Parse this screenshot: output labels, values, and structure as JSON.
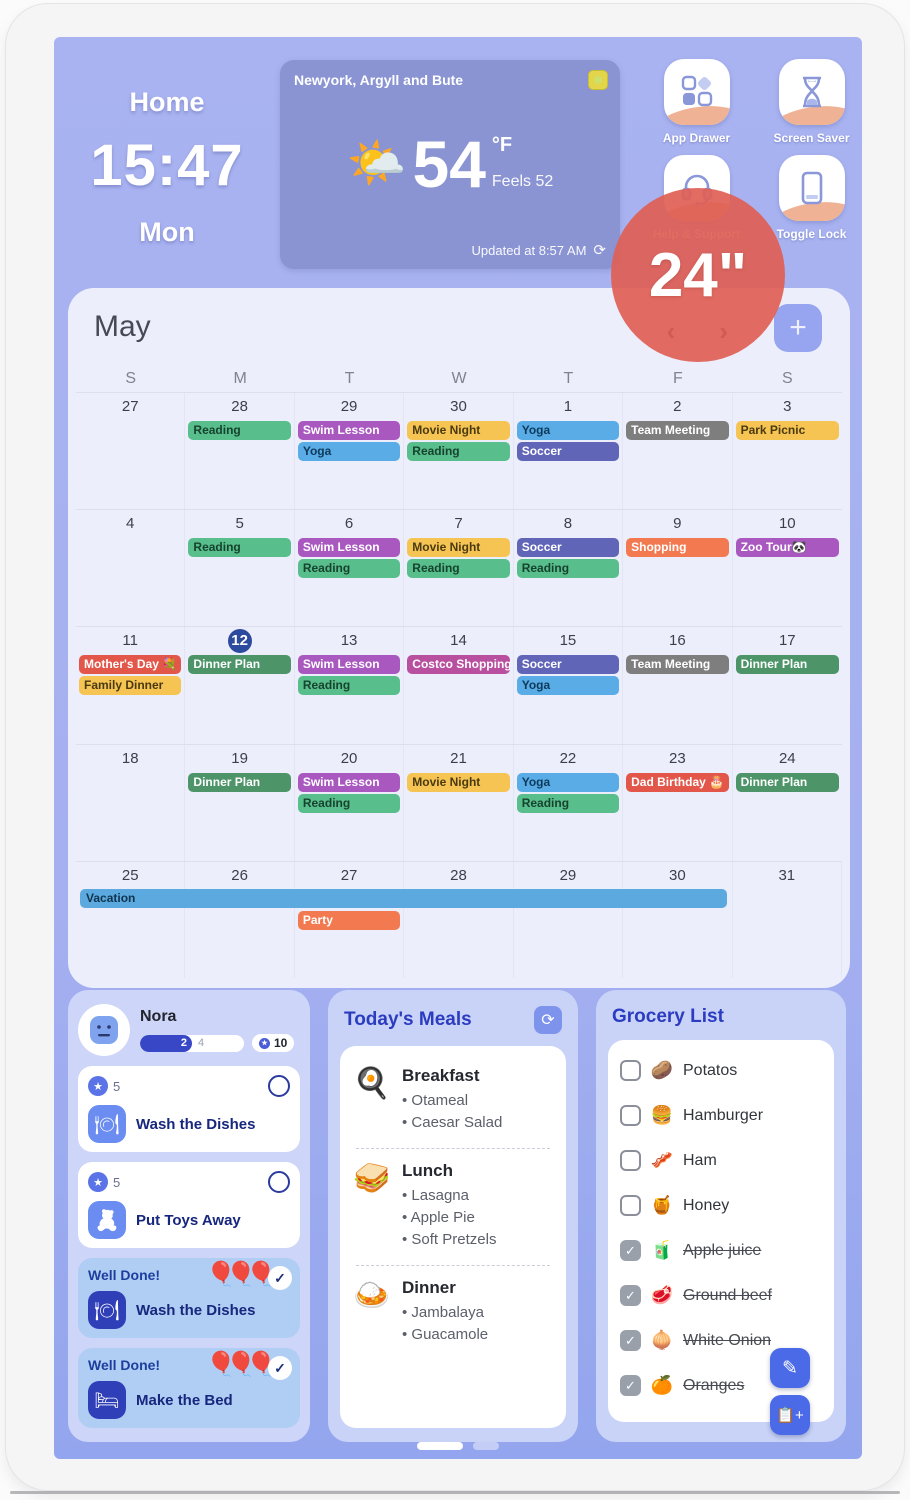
{
  "badge": {
    "text": "24\""
  },
  "clock": {
    "home_label": "Home",
    "time": "15:47",
    "day": "Mon"
  },
  "weather": {
    "location": "Newyork, Argyll and Bute",
    "temp": "54",
    "unit": "°F",
    "feels": "Feels 52",
    "updated": "Updated at 8:57 AM",
    "icon": "sun-behind-cloud"
  },
  "shortcuts": [
    {
      "label": "App Drawer",
      "icon": "app-drawer-icon"
    },
    {
      "label": "Screen Saver",
      "icon": "hourglass-icon"
    },
    {
      "label": "Help & Support",
      "icon": "headset-icon"
    },
    {
      "label": "Toggle Lock",
      "icon": "tablet-lock-icon"
    }
  ],
  "calendar": {
    "month": "May",
    "prev_arrow": "‹",
    "next_arrow": "›",
    "add_label": "+",
    "dow": [
      "S",
      "M",
      "T",
      "W",
      "T",
      "F",
      "S"
    ],
    "today": 12,
    "palette": {
      "green": {
        "bg": "#57BE8C",
        "fg": "#17432E"
      },
      "dgreen": {
        "bg": "#4D9569",
        "fg": "#FFFFFF"
      },
      "purple": {
        "bg": "#A958BF",
        "fg": "#FFFFFF"
      },
      "magenta": {
        "bg": "#B8509F",
        "fg": "#FFFFFF"
      },
      "yellow": {
        "bg": "#F6C453",
        "fg": "#4A3A10"
      },
      "blue": {
        "bg": "#59ACE5",
        "fg": "#0E3A5C"
      },
      "indigo": {
        "bg": "#6065B8",
        "fg": "#FFFFFF"
      },
      "gray": {
        "bg": "#7E7E7E",
        "fg": "#FFFFFF"
      },
      "red": {
        "bg": "#E2574A",
        "fg": "#FFFFFF"
      },
      "orange": {
        "bg": "#F37A50",
        "fg": "#FFFFFF"
      },
      "sky": {
        "bg": "#5BA9DE",
        "fg": "#10344F"
      }
    },
    "weeks": [
      [
        {
          "d": 27,
          "ev": []
        },
        {
          "d": 28,
          "ev": [
            {
              "t": "Reading",
              "c": "green"
            }
          ]
        },
        {
          "d": 29,
          "ev": [
            {
              "t": "Swim Lesson",
              "c": "purple"
            },
            {
              "t": "Yoga",
              "c": "blue"
            }
          ]
        },
        {
          "d": 30,
          "ev": [
            {
              "t": "Movie Night",
              "c": "yellow"
            },
            {
              "t": "Reading",
              "c": "green"
            }
          ]
        },
        {
          "d": 1,
          "ev": [
            {
              "t": "Yoga",
              "c": "blue"
            },
            {
              "t": "Soccer",
              "c": "indigo"
            }
          ]
        },
        {
          "d": 2,
          "ev": [
            {
              "t": "Team Meeting",
              "c": "gray"
            }
          ]
        },
        {
          "d": 3,
          "ev": [
            {
              "t": "Park Picnic",
              "c": "yellow"
            }
          ]
        }
      ],
      [
        {
          "d": 4,
          "ev": []
        },
        {
          "d": 5,
          "ev": [
            {
              "t": "Reading",
              "c": "green"
            }
          ]
        },
        {
          "d": 6,
          "ev": [
            {
              "t": "Swim Lesson",
              "c": "purple"
            },
            {
              "t": "Reading",
              "c": "green"
            }
          ]
        },
        {
          "d": 7,
          "ev": [
            {
              "t": "Movie Night",
              "c": "yellow"
            },
            {
              "t": "Reading",
              "c": "green"
            }
          ]
        },
        {
          "d": 8,
          "ev": [
            {
              "t": "Soccer",
              "c": "indigo"
            },
            {
              "t": "Reading",
              "c": "green"
            }
          ]
        },
        {
          "d": 9,
          "ev": [
            {
              "t": "Shopping",
              "c": "orange"
            }
          ]
        },
        {
          "d": 10,
          "ev": [
            {
              "t": "Zoo Tour🐼",
              "c": "purple"
            }
          ]
        }
      ],
      [
        {
          "d": 11,
          "ev": [
            {
              "t": "Mother's Day 💐",
              "c": "red"
            },
            {
              "t": "Family Dinner",
              "c": "yellow"
            }
          ]
        },
        {
          "d": 12,
          "ev": [
            {
              "t": "Dinner Plan",
              "c": "dgreen"
            }
          ]
        },
        {
          "d": 13,
          "ev": [
            {
              "t": "Swim Lesson",
              "c": "purple"
            },
            {
              "t": "Reading",
              "c": "green"
            }
          ]
        },
        {
          "d": 14,
          "ev": [
            {
              "t": "Costco Shopping",
              "c": "magenta"
            }
          ]
        },
        {
          "d": 15,
          "ev": [
            {
              "t": "Soccer",
              "c": "indigo"
            },
            {
              "t": "Yoga",
              "c": "blue"
            }
          ]
        },
        {
          "d": 16,
          "ev": [
            {
              "t": "Team Meeting",
              "c": "gray"
            }
          ]
        },
        {
          "d": 17,
          "ev": [
            {
              "t": "Dinner Plan",
              "c": "dgreen"
            }
          ]
        }
      ],
      [
        {
          "d": 18,
          "ev": []
        },
        {
          "d": 19,
          "ev": [
            {
              "t": "Dinner Plan",
              "c": "dgreen"
            }
          ]
        },
        {
          "d": 20,
          "ev": [
            {
              "t": "Swim Lesson",
              "c": "purple"
            },
            {
              "t": "Reading",
              "c": "green"
            }
          ]
        },
        {
          "d": 21,
          "ev": [
            {
              "t": "Movie Night",
              "c": "yellow"
            }
          ]
        },
        {
          "d": 22,
          "ev": [
            {
              "t": "Yoga",
              "c": "blue"
            },
            {
              "t": "Reading",
              "c": "green"
            }
          ]
        },
        {
          "d": 23,
          "ev": [
            {
              "t": "Dad Birthday 🎂",
              "c": "red"
            }
          ]
        },
        {
          "d": 24,
          "ev": [
            {
              "t": "Dinner Plan",
              "c": "dgreen"
            }
          ]
        }
      ],
      [
        {
          "d": 25,
          "ev": []
        },
        {
          "d": 26,
          "ev": []
        },
        {
          "d": 27,
          "ev": [
            {
              "t": "Party",
              "c": "orange",
              "mt": 23
            }
          ]
        },
        {
          "d": 28,
          "ev": []
        },
        {
          "d": 29,
          "ev": []
        },
        {
          "d": 30,
          "ev": []
        },
        {
          "d": 31,
          "ev": []
        }
      ]
    ],
    "vacation": {
      "label": "Vacation",
      "c": "sky",
      "week": 4
    }
  },
  "chores": {
    "name": "Nora",
    "progress": {
      "done": 2,
      "total": 4
    },
    "points": "10",
    "tasks": [
      {
        "points": "5",
        "label": "Wash the Dishes",
        "icon": "dishes-icon",
        "glyph": "🍽"
      },
      {
        "points": "5",
        "label": "Put Toys Away",
        "icon": "teddy-bear-icon",
        "glyph": "🧸"
      }
    ],
    "completed": [
      {
        "banner": "Well Done!",
        "label": "Wash the Dishes",
        "icon": "dishes-icon",
        "glyph": "🍽",
        "balloons": "🎈🎈🎈"
      },
      {
        "banner": "Well Done!",
        "label": "Make the Bed",
        "icon": "bed-icon",
        "glyph": "🛏",
        "balloons": "🎈🎈🎈"
      }
    ]
  },
  "meals": {
    "title": "Today's Meals",
    "sections": [
      {
        "name": "Breakfast",
        "emoji": "🍳",
        "items": [
          "Otameal",
          "Caesar Salad"
        ]
      },
      {
        "name": "Lunch",
        "emoji": "🥪",
        "items": [
          "Lasagna",
          "Apple Pie",
          "Soft Pretzels"
        ]
      },
      {
        "name": "Dinner",
        "emoji": "🍛",
        "items": [
          "Jambalaya",
          "Guacamole"
        ]
      }
    ]
  },
  "grocery": {
    "title": "Grocery List",
    "items": [
      {
        "label": "Potatos",
        "emoji": "🥔",
        "checked": false
      },
      {
        "label": "Hamburger",
        "emoji": "🍔",
        "checked": false
      },
      {
        "label": "Ham",
        "emoji": "🥓",
        "checked": false
      },
      {
        "label": "Honey",
        "emoji": "🍯",
        "checked": false
      },
      {
        "label": "Apple juice",
        "emoji": "🧃",
        "checked": true
      },
      {
        "label": "Ground beef",
        "emoji": "🥩",
        "checked": true
      },
      {
        "label": "White Onion",
        "emoji": "🧅",
        "checked": true
      },
      {
        "label": "Oranges",
        "emoji": "🍊",
        "checked": true
      }
    ]
  },
  "colors": {
    "wallpaper": "#a6b1f0",
    "weather_card": "#8a94d3",
    "panel": "#c9d3f8",
    "accent_blue": "#4a6ae8",
    "badge_red": "#e06055"
  }
}
